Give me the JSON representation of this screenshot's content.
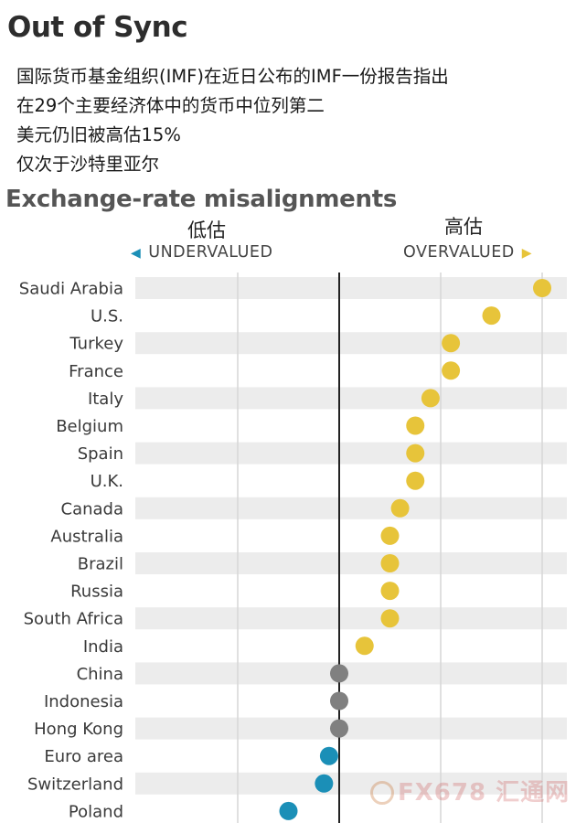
{
  "header": {
    "title": "Out of Sync",
    "note_lines": [
      "国际货币基金组织(IMF)在近日公布的IMF一份报告指出",
      "在29个主要经济体中的货币中位列第二",
      "美元仍旧被高估15%",
      "仅次于沙特里亚尔"
    ]
  },
  "watermark": {
    "text": "FX678 汇通网"
  },
  "chart_data": {
    "type": "scatter",
    "title": "Exchange-rate misalignments",
    "direction_labels": {
      "undervalued_cn": "低估",
      "undervalued": "UNDERVALUED",
      "overvalued_cn": "高估",
      "overvalued": "OVERVALUED"
    },
    "categories": [
      "Saudi Arabia",
      "U.S.",
      "Turkey",
      "France",
      "Italy",
      "Belgium",
      "Spain",
      "U.K.",
      "Canada",
      "Australia",
      "Brazil",
      "Russia",
      "South Africa",
      "India",
      "China",
      "Indonesia",
      "Hong Kong",
      "Euro area",
      "Switzerland",
      "Poland"
    ],
    "values": [
      20,
      15,
      11,
      11,
      9,
      7.5,
      7.5,
      7.5,
      6,
      5,
      5,
      5,
      5,
      2.5,
      0,
      0,
      0,
      -1,
      -1.5,
      -5
    ],
    "xlim": [
      -20,
      20
    ],
    "gridlines": [
      -10,
      0,
      10,
      20
    ],
    "unit": "percent",
    "colors": {
      "overvalued": "#e7c43a",
      "fair": "#808080",
      "undervalued": "#1b8fb7",
      "band": "#ececec",
      "grid": "#d6d6d6",
      "zero": "#222222"
    },
    "grid": true,
    "legend": "none"
  }
}
